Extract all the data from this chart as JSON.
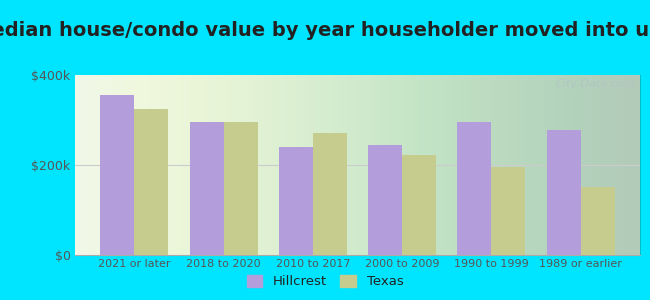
{
  "title": "Median house/condo value by year householder moved into unit",
  "categories": [
    "2021 or later",
    "2018 to 2020",
    "2010 to 2017",
    "2000 to 2009",
    "1990 to 1999",
    "1989 or earlier"
  ],
  "hillcrest_values": [
    355000,
    295000,
    240000,
    245000,
    295000,
    278000
  ],
  "texas_values": [
    325000,
    295000,
    272000,
    222000,
    195000,
    152000
  ],
  "hillcrest_color": "#b39ddb",
  "texas_color": "#c5cc8e",
  "background_outer": "#00e5ff",
  "ylim": [
    0,
    400000
  ],
  "yticks": [
    0,
    200000,
    400000
  ],
  "ytick_labels": [
    "$0",
    "$200k",
    "$400k"
  ],
  "legend_labels": [
    "Hillcrest",
    "Texas"
  ],
  "watermark": "City-Data.com",
  "bar_width": 0.38,
  "title_fontsize": 14,
  "tick_color": "#555555"
}
